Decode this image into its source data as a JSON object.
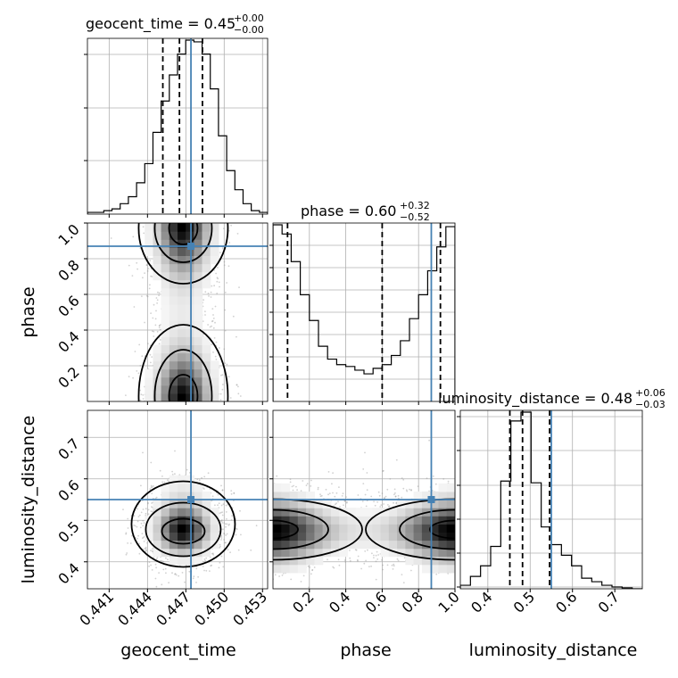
{
  "titles": {
    "geocent_time": {
      "name": "geocent_time",
      "eq": " = ",
      "value": "0.45",
      "upper": "+0.00",
      "lower": "−0.00"
    },
    "phase": {
      "name": "phase",
      "eq": " = ",
      "value": "0.60",
      "upper": "+0.32",
      "lower": "−0.52"
    },
    "luminosity_distance": {
      "name": "luminosity_distance",
      "eq": " = ",
      "value": "0.48",
      "upper": "+0.06",
      "lower": "−0.03"
    }
  },
  "axis_labels": {
    "x0": "geocent_time",
    "x1": "phase",
    "x2": "luminosity_distance",
    "y1": "phase",
    "y2": "luminosity_distance"
  },
  "colors": {
    "truth": "#4682b4",
    "hist": "#000000",
    "grid": "#b0b0b0",
    "scatter": "#9a9a9a"
  },
  "chart_data": {
    "type": "corner",
    "parameters": [
      "geocent_time",
      "phase",
      "luminosity_distance"
    ],
    "ranges": {
      "geocent_time": [
        0.4393,
        0.4534
      ],
      "phase": [
        0.0,
        1.0
      ],
      "luminosity_distance": [
        0.335,
        0.765
      ]
    },
    "ticks": {
      "geocent_time": [
        "0.441",
        "0.444",
        "0.447",
        "0.450",
        "0.453"
      ],
      "phase_x": [
        "0.2",
        "0.4",
        "0.6",
        "0.8",
        "1.0"
      ],
      "phase_y": [
        "0.2",
        "0.4",
        "0.6",
        "0.8",
        "1.0"
      ],
      "luminosity_distance_x": [
        "0.4",
        "0.5",
        "0.6",
        "0.7"
      ],
      "luminosity_distance_y": [
        "0.4",
        "0.5",
        "0.6",
        "0.7"
      ]
    },
    "truths": {
      "geocent_time": 0.4474,
      "phase": 0.87,
      "luminosity_distance": 0.55
    },
    "quantiles": {
      "geocent_time": [
        0.4452,
        0.4465,
        0.4483
      ],
      "phase": [
        0.08,
        0.6,
        0.92
      ],
      "luminosity_distance": [
        0.452,
        0.482,
        0.546
      ]
    },
    "histograms": {
      "geocent_time": [
        1,
        1,
        2,
        3,
        6,
        10,
        18,
        29,
        47,
        65,
        80,
        92,
        100,
        99,
        92,
        72,
        45,
        25,
        14,
        6,
        2,
        1
      ],
      "phase": [
        96,
        91,
        76,
        58,
        44,
        30,
        23,
        20,
        19,
        17,
        15,
        18,
        20,
        25,
        33,
        45,
        58,
        71,
        84,
        95
      ],
      "luminosity_distance": [
        2,
        7,
        13,
        24,
        61,
        95,
        100,
        60,
        35,
        25,
        19,
        13,
        6,
        4,
        2,
        1,
        0.5,
        0
      ]
    },
    "grid": true
  }
}
